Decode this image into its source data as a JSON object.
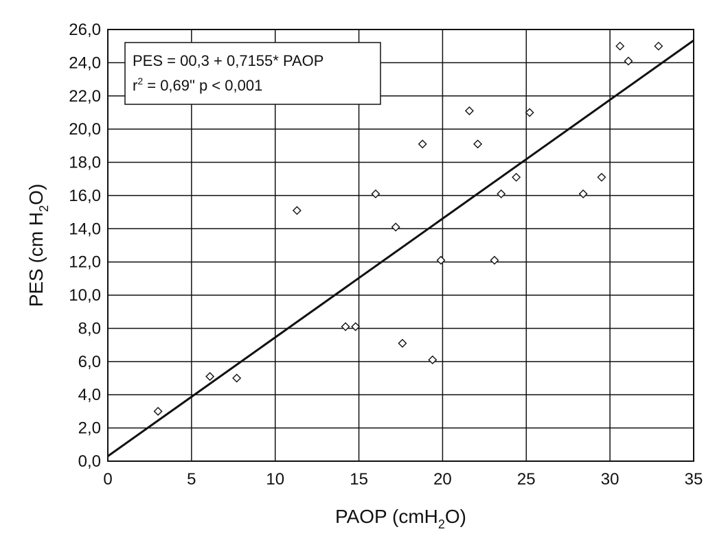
{
  "chart_data": {
    "type": "scatter",
    "xlabel_main": "PAOP (cmH",
    "xlabel_sub": "2",
    "xlabel_end": "O)",
    "ylabel_main": "PES (cm H",
    "ylabel_sub": "2",
    "ylabel_end": "O)",
    "xlim": [
      0,
      35
    ],
    "ylim": [
      0,
      26
    ],
    "x_ticks": [
      0,
      5,
      10,
      15,
      20,
      25,
      30,
      35
    ],
    "x_tick_labels": [
      "0",
      "5",
      "10",
      "15",
      "20",
      "25",
      "30",
      "35"
    ],
    "y_ticks": [
      0,
      2,
      4,
      6,
      8,
      10,
      12,
      14,
      16,
      18,
      20,
      22,
      24,
      26
    ],
    "y_tick_labels": [
      "0,0",
      "2,0",
      "4,0",
      "6,0",
      "8,0",
      "10,0",
      "12,0",
      "14,0",
      "16,0",
      "18,0",
      "20,0",
      "22,0",
      "24,0",
      "26,0"
    ],
    "grid": true,
    "marker": "open-diamond",
    "points": [
      {
        "x": 3.0,
        "y": 3.0
      },
      {
        "x": 6.1,
        "y": 5.1
      },
      {
        "x": 7.7,
        "y": 5.0
      },
      {
        "x": 11.3,
        "y": 15.1
      },
      {
        "x": 14.2,
        "y": 8.1
      },
      {
        "x": 14.8,
        "y": 8.1
      },
      {
        "x": 16.0,
        "y": 16.1
      },
      {
        "x": 17.2,
        "y": 14.1
      },
      {
        "x": 17.6,
        "y": 7.1
      },
      {
        "x": 18.8,
        "y": 19.1
      },
      {
        "x": 19.4,
        "y": 6.1
      },
      {
        "x": 19.9,
        "y": 12.1
      },
      {
        "x": 21.6,
        "y": 21.1
      },
      {
        "x": 22.1,
        "y": 19.1
      },
      {
        "x": 23.1,
        "y": 12.1
      },
      {
        "x": 23.5,
        "y": 16.1
      },
      {
        "x": 24.4,
        "y": 17.1
      },
      {
        "x": 25.2,
        "y": 21.0
      },
      {
        "x": 28.4,
        "y": 16.1
      },
      {
        "x": 29.5,
        "y": 17.1
      },
      {
        "x": 30.6,
        "y": 25.0
      },
      {
        "x": 31.1,
        "y": 24.1
      },
      {
        "x": 32.9,
        "y": 25.0
      }
    ],
    "fit_line": {
      "intercept": 0.3,
      "slope": 0.7155
    },
    "annotation": {
      "line1": "PES = 00,3 + 0,7155* PAOP",
      "line2_r": "r",
      "line2_sup": "2",
      "line2_rest": " = 0,69\" p < 0,001"
    }
  }
}
